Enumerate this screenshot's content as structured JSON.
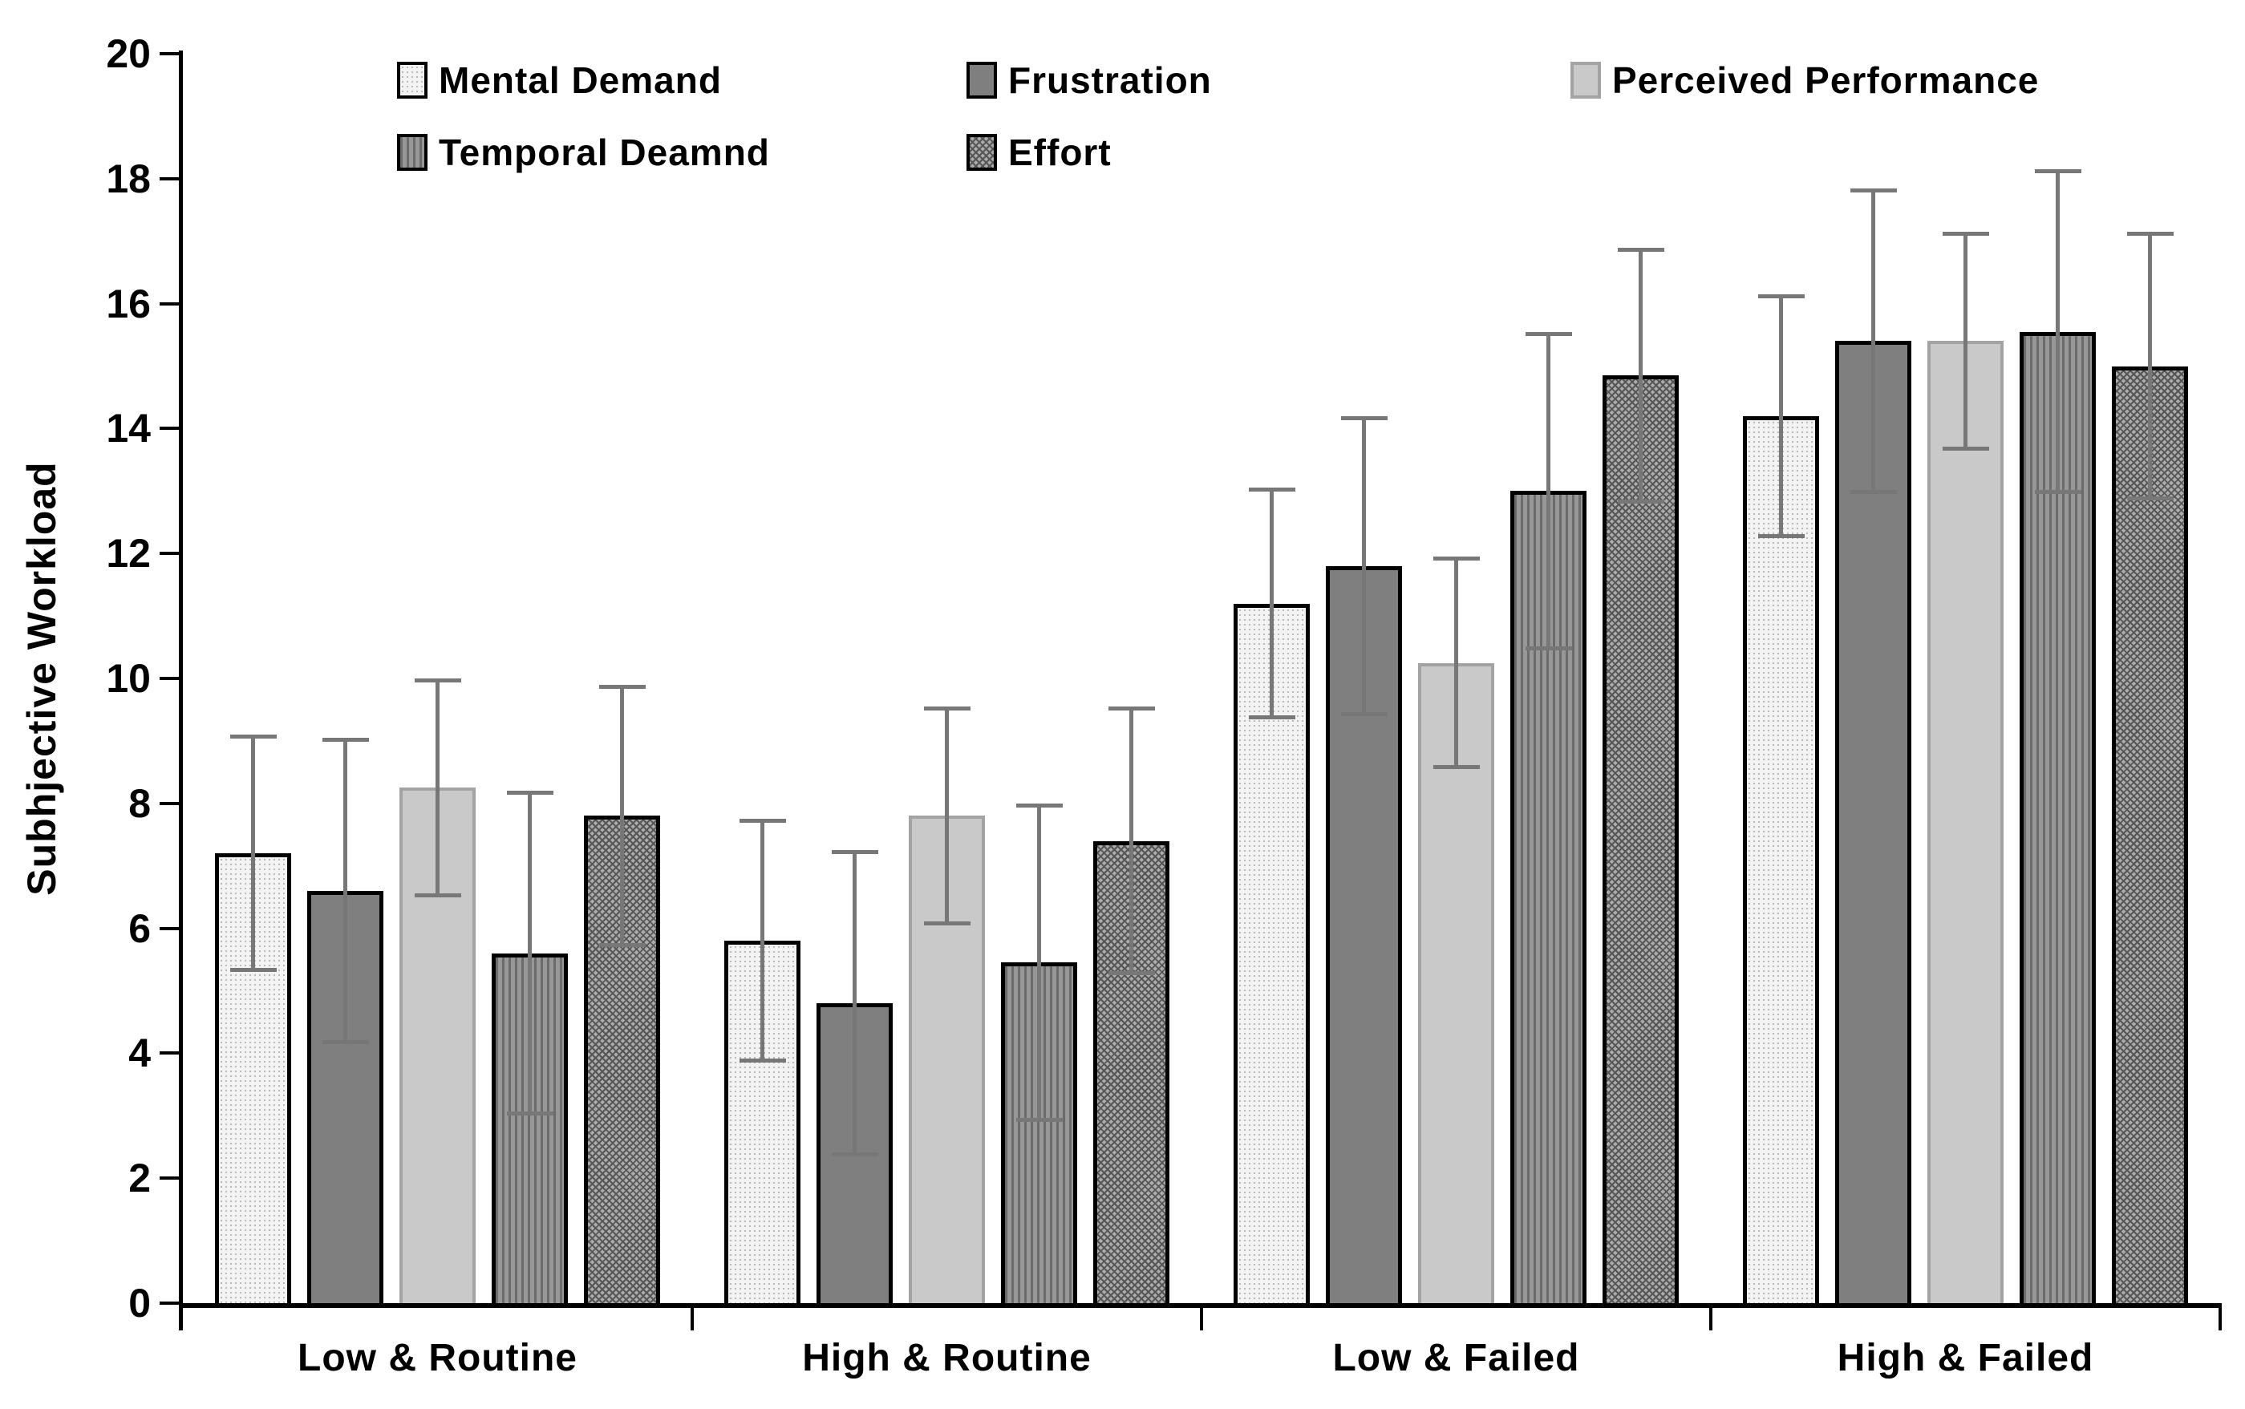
{
  "chart_data": {
    "type": "bar",
    "title": "",
    "ylabel": "Subhjective Workload",
    "xlabel": "",
    "ylim": [
      0,
      20
    ],
    "ytick_step": 2,
    "yticks": [
      0,
      2,
      4,
      6,
      8,
      10,
      12,
      14,
      16,
      18,
      20
    ],
    "grid": false,
    "legend_position": "top",
    "categories": [
      "Low & Routine",
      "High & Routine",
      "Low & Failed",
      "High & Failed"
    ],
    "series": [
      {
        "name": "Mental Demand",
        "pattern": "dotted-light",
        "color": "#f3f3f3",
        "values": [
          7.2,
          5.8,
          11.2,
          14.2
        ],
        "errors": [
          1.9,
          1.95,
          1.85,
          1.95
        ]
      },
      {
        "name": "Frustration",
        "pattern": "solid-dark",
        "color": "#7f7f7f",
        "values": [
          6.6,
          4.8,
          11.8,
          15.4
        ],
        "errors": [
          2.45,
          2.45,
          2.4,
          2.45
        ]
      },
      {
        "name": "Perceived Performance",
        "pattern": "solid-light",
        "color": "#c9c9c9",
        "values": [
          8.25,
          7.8,
          10.25,
          15.4
        ],
        "errors": [
          1.75,
          1.75,
          1.7,
          1.75
        ]
      },
      {
        "name": "Temporal Deamnd",
        "pattern": "vertical-stripes",
        "color": "#8c8c8c",
        "values": [
          5.6,
          5.45,
          13.0,
          15.55
        ],
        "errors": [
          2.6,
          2.55,
          2.55,
          2.6
        ]
      },
      {
        "name": "Effort",
        "pattern": "diagonal-hatch",
        "color": "#8e8e8e",
        "values": [
          7.8,
          7.4,
          14.85,
          15.0
        ],
        "errors": [
          2.1,
          2.15,
          2.05,
          2.15
        ]
      }
    ],
    "legend_rows": [
      [
        "Mental Demand",
        "Frustration",
        "Perceived Performance"
      ],
      [
        "Temporal Deamnd",
        "Effort"
      ]
    ],
    "error_bar_color": "#777777",
    "axis_color": "#000000"
  }
}
